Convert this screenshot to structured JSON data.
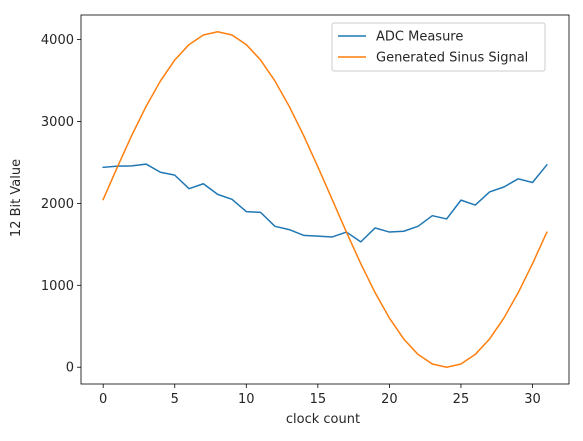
{
  "chart_data": {
    "type": "line",
    "title": "",
    "xlabel": "clock count",
    "ylabel": "12 Bit Value",
    "xlim": [
      -1.55,
      32.55
    ],
    "ylim": [
      -205,
      4300
    ],
    "xticks": [
      0,
      5,
      10,
      15,
      20,
      25,
      30
    ],
    "yticks": [
      0,
      1000,
      2000,
      3000,
      4000
    ],
    "grid": false,
    "legend_position": "top-right",
    "x": [
      0,
      1,
      2,
      3,
      4,
      5,
      6,
      7,
      8,
      9,
      10,
      11,
      12,
      13,
      14,
      15,
      16,
      17,
      18,
      19,
      20,
      21,
      22,
      23,
      24,
      25,
      26,
      27,
      28,
      29,
      30,
      31
    ],
    "series": [
      {
        "name": "ADC Measure",
        "color": "#1f77b4",
        "values": [
          2440,
          2455,
          2458,
          2480,
          2380,
          2345,
          2180,
          2240,
          2110,
          2050,
          1900,
          1890,
          1720,
          1680,
          1610,
          1600,
          1590,
          1650,
          1530,
          1700,
          1650,
          1660,
          1720,
          1850,
          1810,
          2040,
          1980,
          2140,
          2200,
          2300,
          2255,
          2470
        ]
      },
      {
        "name": "Generated Sinus Signal",
        "color": "#ff7f0e",
        "values": [
          2048,
          2447,
          2831,
          3185,
          3495,
          3750,
          3939,
          4056,
          4095,
          4056,
          3939,
          3750,
          3495,
          3185,
          2831,
          2447,
          2048,
          1648,
          1264,
          910,
          600,
          345,
          156,
          39,
          0,
          39,
          156,
          345,
          600,
          910,
          1264,
          1648
        ]
      }
    ]
  }
}
